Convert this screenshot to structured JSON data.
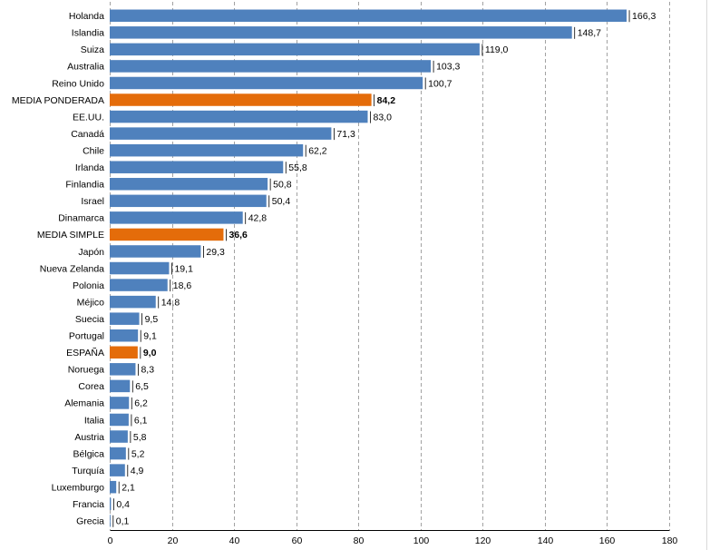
{
  "chart_data": {
    "type": "bar",
    "orientation": "horizontal",
    "title": "",
    "xlabel": "",
    "ylabel": "",
    "xlim": [
      0,
      180
    ],
    "x_ticks": [
      "0",
      "20",
      "40",
      "60",
      "80",
      "100",
      "120",
      "140",
      "160",
      "180"
    ],
    "grid": "vertical dashed lines",
    "legend": "none",
    "colors": {
      "default": "#4f81bd",
      "highlight": "#e46c0a"
    },
    "categories": [
      "Holanda",
      "Islandia",
      "Suiza",
      "Australia",
      "Reino Unido",
      "MEDIA PONDERADA",
      "EE.UU.",
      "Canadá",
      "Chile",
      "Irlanda",
      "Finlandia",
      "Israel",
      "Dinamarca",
      "MEDIA SIMPLE",
      "Japón",
      "Nueva Zelanda",
      "Polonia",
      "Méjico",
      "Suecia",
      "Portugal",
      "ESPAÑA",
      "Noruega",
      "Corea",
      "Alemania",
      "Italia",
      "Austria",
      "Bélgica",
      "Turquía",
      "Luxemburgo",
      "Francia",
      "Grecia"
    ],
    "values": [
      166.3,
      148.7,
      119.0,
      103.3,
      100.7,
      84.2,
      83.0,
      71.3,
      62.2,
      55.8,
      50.8,
      50.4,
      42.8,
      36.6,
      29.3,
      19.1,
      18.6,
      14.8,
      9.5,
      9.1,
      9.0,
      8.3,
      6.5,
      6.2,
      6.1,
      5.8,
      5.2,
      4.9,
      2.1,
      0.4,
      0.1
    ],
    "value_labels": [
      "166,3",
      "148,7",
      "119,0",
      "103,3",
      "100,7",
      "84,2",
      "83,0",
      "71,3",
      "62,2",
      "55,8",
      "50,8",
      "50,4",
      "42,8",
      "36,6",
      "29,3",
      "19,1",
      "18,6",
      "14,8",
      "9,5",
      "9,1",
      "9,0",
      "8,3",
      "6,5",
      "6,2",
      "6,1",
      "5,8",
      "5,2",
      "4,9",
      "2,1",
      "0,4",
      "0,1"
    ],
    "highlighted": [
      "MEDIA PONDERADA",
      "MEDIA SIMPLE",
      "ESPAÑA"
    ]
  }
}
